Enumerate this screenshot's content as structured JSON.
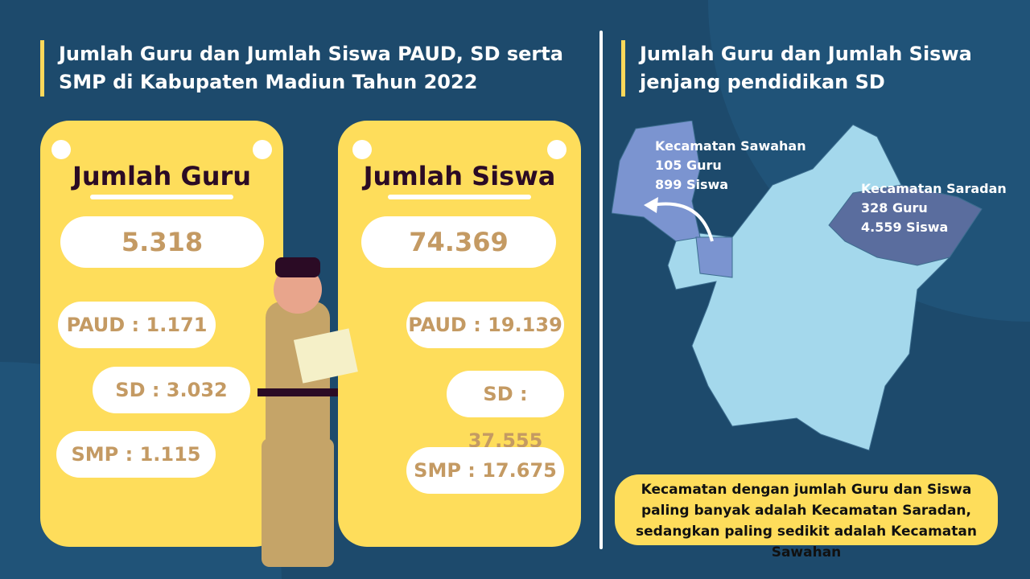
{
  "left": {
    "title_line1": "Jumlah Guru dan Jumlah Siswa PAUD, SD serta",
    "title_line2": "SMP di Kabupaten Madiun Tahun 2022",
    "guru": {
      "heading": "Jumlah Guru",
      "total": "5.318",
      "paud": "PAUD : 1.171",
      "sd": "SD : 3.032",
      "smp": "SMP : 1.115"
    },
    "siswa": {
      "heading": "Jumlah Siswa",
      "total": "74.369",
      "paud": "PAUD : 19.139",
      "sd": "SD : 37.555",
      "smp": "SMP : 17.675"
    }
  },
  "right": {
    "title_line1": "Jumlah Guru dan Jumlah Siswa",
    "title_line2": "jenjang pendidikan SD",
    "sawahan": {
      "name": "Kecamatan Sawahan",
      "guru": "105 Guru",
      "siswa": "899 Siswa"
    },
    "saradan": {
      "name": "Kecamatan Saradan",
      "guru": "328 Guru",
      "siswa": "4.559 Siswa"
    },
    "note": "Kecamatan dengan jumlah Guru dan Siswa paling banyak adalah Kecamatan Saradan, sedangkan paling sedikit adalah Kecamatan Sawahan"
  },
  "colors": {
    "background": "#1d4a6c",
    "card": "#fedd5b",
    "number": "#c49a63",
    "map": "#a4d8ec",
    "highlight_saradan": "#5a6d9e",
    "highlight_sawahan": "#7b94d0"
  }
}
